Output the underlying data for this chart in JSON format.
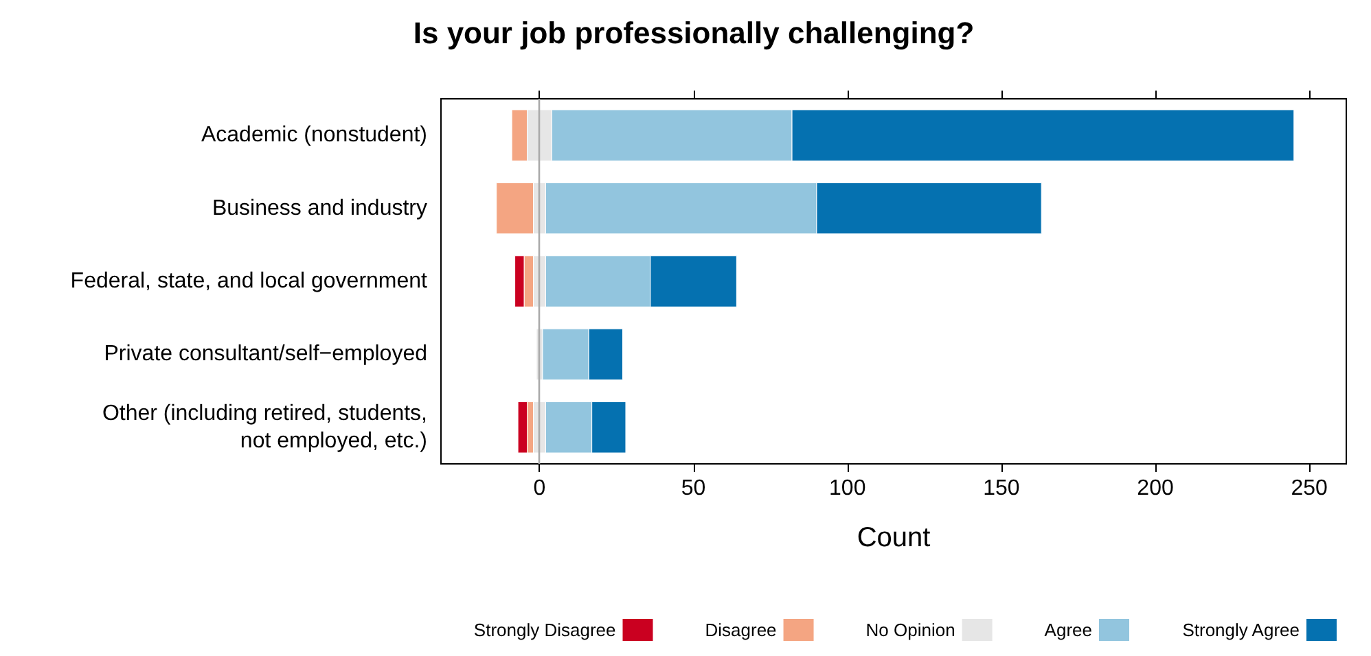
{
  "chart_data": {
    "type": "bar",
    "orientation": "horizontal",
    "title": "Is your job professionally challenging?",
    "xlabel": "Count",
    "categories": [
      "Academic (nonstudent)",
      "Business and industry",
      "Federal, state, and local government",
      "Private consultant/self−employed",
      "Other (including retired, students,\nnot employed, etc.)"
    ],
    "series": [
      {
        "name": "Strongly Disagree",
        "color": "#ca0020",
        "base": [
          null,
          null,
          -8,
          null,
          -7
        ],
        "values": [
          null,
          null,
          3,
          null,
          3
        ]
      },
      {
        "name": "Disagree",
        "color": "#f4a582",
        "base": [
          -9,
          -14,
          -5,
          null,
          -4
        ],
        "values": [
          5,
          12,
          3,
          null,
          2
        ]
      },
      {
        "name": "No Opinion",
        "color": "#e6e6e6",
        "base": [
          -4,
          -2,
          -2,
          -1,
          -2
        ],
        "values": [
          8,
          4,
          4,
          2,
          4
        ]
      },
      {
        "name": "Agree",
        "color": "#92c5de",
        "base": [
          4,
          2,
          2,
          1,
          2
        ],
        "values": [
          78,
          88,
          34,
          15,
          15
        ]
      },
      {
        "name": "Strongly Agree",
        "color": "#0571b0",
        "base": [
          82,
          90,
          36,
          16,
          17
        ],
        "values": [
          163,
          73,
          28,
          11,
          11
        ]
      }
    ],
    "xlim": [
      -32,
      262
    ],
    "xticks": [
      0,
      50,
      100,
      150,
      200,
      250
    ],
    "ref_lines": [
      {
        "axis": "x",
        "value": 0,
        "color": "#aaaaaa"
      }
    ],
    "legend": "bottom"
  }
}
